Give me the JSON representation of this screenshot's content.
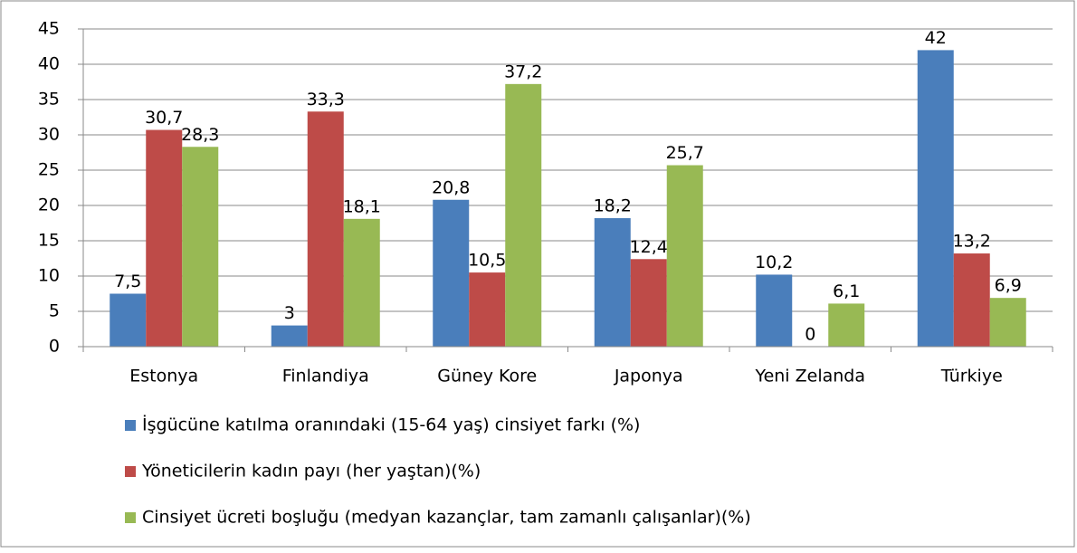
{
  "chart_data": {
    "type": "bar",
    "categories": [
      "Estonya",
      "Finlandiya",
      "Güney Kore",
      "Japonya",
      "Yeni Zelanda",
      "Türkiye"
    ],
    "series": [
      {
        "name": "İşgücüne katılma oranındaki (15-64 yaş) cinsiyet farkı (%)",
        "color": "#4a7ebb",
        "values": [
          7.5,
          3,
          20.8,
          18.2,
          10.2,
          42
        ],
        "value_labels": [
          "7,5",
          "3",
          "20,8",
          "18,2",
          "10,2",
          "42"
        ]
      },
      {
        "name": "Yöneticilerin kadın payı (her yaştan)(%)",
        "color": "#be4b48",
        "values": [
          30.7,
          33.3,
          10.5,
          12.4,
          0,
          13.2
        ],
        "value_labels": [
          "30,7",
          "33,3",
          "10,5",
          "12,4",
          "0",
          "13,2"
        ]
      },
      {
        "name": "Cinsiyet ücreti boşluğu (medyan kazançlar, tam zamanlı çalışanlar)(%)",
        "color": "#98b954",
        "values": [
          28.3,
          18.1,
          37.2,
          25.7,
          6.1,
          6.9
        ],
        "value_labels": [
          "28,3",
          "18,1",
          "37,2",
          "25,7",
          "6,1",
          "6,9"
        ]
      }
    ],
    "ylim": [
      0,
      45
    ],
    "yticks": [
      0,
      5,
      10,
      15,
      20,
      25,
      30,
      35,
      40,
      45
    ],
    "grid": true,
    "legend": "bottom"
  }
}
